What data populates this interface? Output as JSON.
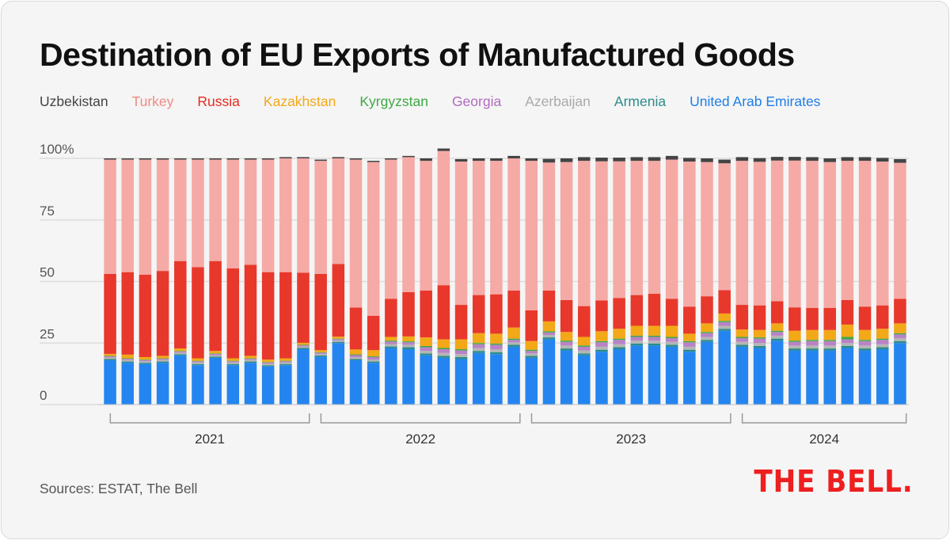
{
  "chart_data": {
    "type": "bar",
    "stacked": true,
    "percent": true,
    "title": "Destination of EU Exports of Manufactured Goods",
    "source": "Sources: ESTAT, The Bell",
    "logo": "THE BELL.",
    "y_ticks": [
      "0",
      "25",
      "50",
      "75",
      "100%"
    ],
    "ylim": [
      0,
      100
    ],
    "grid": true,
    "legend_position": "top",
    "years": [
      {
        "label": "2021",
        "months": 12
      },
      {
        "label": "2022",
        "months": 12
      },
      {
        "label": "2023",
        "months": 12
      },
      {
        "label": "2024",
        "months": 10
      }
    ],
    "series": [
      {
        "name": "United Arab Emirates",
        "color": "#2585f0",
        "values": [
          18,
          17,
          16.5,
          17,
          20,
          16,
          19,
          16,
          17,
          15.5,
          16,
          22.5,
          19.5,
          25,
          18,
          17,
          23,
          22.5,
          20,
          19,
          18.5,
          21,
          20.5,
          23.5,
          19,
          26.5,
          22,
          20,
          21.5,
          22.5,
          24,
          24,
          23.5,
          21.5,
          25.5,
          30,
          23.5,
          23,
          26,
          22,
          22,
          22,
          23,
          22,
          22.5,
          25
        ]
      },
      {
        "name": "Armenia",
        "color": "#2b8c89",
        "values": [
          0.5,
          0.5,
          0.5,
          0.5,
          0.5,
          0.5,
          0.5,
          0.5,
          0.5,
          0.5,
          0.5,
          0.5,
          0.5,
          0.5,
          0.5,
          0.5,
          0.6,
          0.8,
          0.8,
          0.8,
          0.8,
          0.8,
          0.8,
          0.8,
          0.8,
          0.8,
          0.8,
          0.8,
          0.8,
          0.8,
          0.8,
          0.8,
          0.8,
          0.8,
          0.8,
          0.8,
          0.8,
          0.8,
          0.8,
          0.8,
          0.8,
          0.8,
          0.8,
          0.8,
          0.8,
          0.8
        ]
      },
      {
        "name": "Azerbaijan",
        "color": "#b5b5b5",
        "values": [
          0.6,
          0.6,
          0.6,
          0.6,
          0.6,
          0.6,
          0.6,
          0.6,
          0.6,
          0.6,
          0.6,
          0.6,
          0.6,
          0.6,
          0.8,
          0.8,
          1,
          1,
          1,
          1.2,
          1.2,
          1.2,
          1.2,
          1,
          1,
          1,
          1.2,
          1.2,
          1.2,
          1.2,
          1.2,
          1.2,
          1.2,
          1.2,
          1.2,
          1.2,
          1.2,
          1.2,
          1.2,
          1.2,
          1.2,
          1.2,
          1.2,
          1.2,
          1.2,
          1.2
        ]
      },
      {
        "name": "Georgia",
        "color": "#b982c6",
        "values": [
          0.5,
          0.5,
          0.5,
          0.5,
          0.5,
          0.5,
          0.5,
          0.5,
          0.5,
          0.5,
          0.5,
          0.5,
          0.5,
          0.5,
          0.8,
          1,
          1,
          1,
          1.5,
          1.5,
          1.5,
          1.5,
          1.8,
          1,
          1,
          1,
          1.5,
          1.5,
          1.8,
          1.8,
          1.5,
          1.5,
          1.5,
          1.8,
          1.5,
          1.5,
          1.5,
          1.8,
          1.5,
          1.5,
          1.8,
          1.8,
          1.5,
          1.8,
          1.8,
          1.5
        ]
      },
      {
        "name": "Kyrgyzstan",
        "color": "#3ea845",
        "values": [
          0.2,
          0.2,
          0.2,
          0.2,
          0.2,
          0.2,
          0.2,
          0.2,
          0.2,
          0.2,
          0.2,
          0.2,
          0.2,
          0.2,
          0.3,
          0.3,
          0.4,
          0.4,
          0.5,
          0.5,
          0.5,
          0.5,
          0.5,
          0.5,
          0.5,
          0.5,
          0.5,
          0.5,
          0.5,
          0.5,
          0.5,
          0.5,
          0.5,
          0.5,
          0.5,
          0.5,
          0.5,
          0.5,
          0.5,
          0.5,
          0.5,
          0.5,
          1,
          0.5,
          0.5,
          0.5
        ]
      },
      {
        "name": "Kazakhstan",
        "color": "#f3a818",
        "values": [
          0.8,
          1.5,
          1,
          1,
          1,
          1,
          1,
          1,
          1,
          1,
          1,
          0.8,
          0.8,
          0.8,
          2,
          2.5,
          1.5,
          2,
          3.5,
          3.5,
          4,
          4,
          4,
          4.5,
          3.5,
          4,
          3.5,
          3.5,
          4,
          4,
          4,
          4,
          4.5,
          3,
          3.5,
          3,
          3,
          3,
          3,
          4,
          4,
          4,
          5,
          4,
          4,
          4
        ]
      },
      {
        "name": "Russia",
        "color": "#e8382b",
        "values": [
          32.5,
          33.5,
          33.5,
          34.5,
          35.5,
          37,
          36.5,
          36.5,
          37,
          35.5,
          35,
          28.5,
          31,
          29.5,
          17,
          14,
          15.5,
          18,
          19,
          22,
          14,
          15.5,
          16,
          15,
          12.5,
          12.5,
          13,
          12.5,
          12.5,
          12.5,
          12.5,
          13,
          11,
          11,
          11,
          9.5,
          10,
          10,
          9,
          9.5,
          9,
          9,
          10,
          9.5,
          9.5,
          10
        ]
      },
      {
        "name": "Turkey",
        "color": "#f5aaa6",
        "values": [
          46.4,
          45.7,
          46.7,
          45.2,
          41.2,
          43.7,
          41.2,
          44.2,
          42.7,
          45.7,
          46.2,
          46.4,
          45.9,
          42.9,
          60.1,
          62.4,
          56.5,
          54.8,
          52.7,
          54.5,
          58.2,
          54.5,
          54.2,
          53.7,
          60.7,
          52,
          56,
          59,
          56.5,
          55.5,
          54.5,
          54,
          56.5,
          58.9,
          54.5,
          51.5,
          58.5,
          58.3,
          57.1,
          59.6,
          59.7,
          59.2,
          56.5,
          59.2,
          58.4,
          55.2
        ]
      },
      {
        "name": "Uzbekistan",
        "color": "#444444",
        "values": [
          0.5,
          0.5,
          0.5,
          0.5,
          0.5,
          0.5,
          0.5,
          0.5,
          0.5,
          0.5,
          0.5,
          0.5,
          0.5,
          0.5,
          0.5,
          0.5,
          0.5,
          0.5,
          1,
          1,
          1,
          1,
          1,
          1,
          1,
          1.5,
          1.5,
          1.5,
          1.5,
          1.5,
          1.5,
          1.5,
          1.5,
          1.5,
          1.5,
          1.5,
          1.5,
          1.5,
          1.5,
          1.5,
          1.5,
          1.5,
          1.5,
          1.5,
          1.5,
          1.5
        ]
      }
    ],
    "legend_order": [
      "Uzbekistan",
      "Turkey",
      "Russia",
      "Kazakhstan",
      "Kyrgyzstan",
      "Georgia",
      "Azerbaijan",
      "Armenia",
      "United Arab Emirates"
    ],
    "legend_colors": {
      "Uzbekistan": "#444444",
      "Turkey": "#f08a85",
      "Russia": "#e52a1e",
      "Kazakhstan": "#f3a818",
      "Kyrgyzstan": "#3ea845",
      "Georgia": "#b06cbf",
      "Azerbaijan": "#aaaaaa",
      "Armenia": "#2b8c89",
      "United Arab Emirates": "#1f7ee8"
    }
  }
}
